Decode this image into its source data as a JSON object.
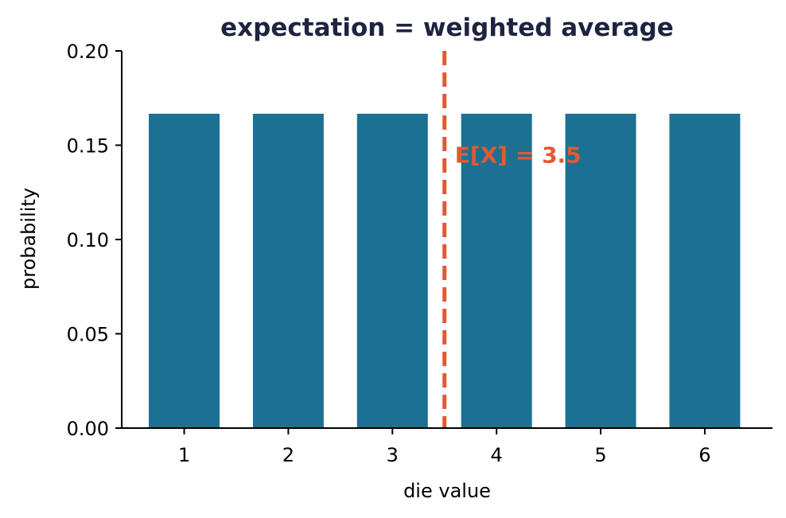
{
  "chart_data": {
    "type": "bar",
    "title": "expectation = weighted average",
    "xlabel": "die value",
    "ylabel": "probability",
    "categories": [
      1,
      2,
      3,
      4,
      5,
      6
    ],
    "values": [
      0.1667,
      0.1667,
      0.1667,
      0.1667,
      0.1667,
      0.1667
    ],
    "xlim": [
      0.4,
      6.65
    ],
    "ylim": [
      0,
      0.2
    ],
    "y_ticks": [
      "0.00",
      "0.05",
      "0.10",
      "0.15",
      "0.20"
    ],
    "y_tick_values": [
      0,
      0.05,
      0.1,
      0.15,
      0.2
    ],
    "x_ticks": [
      "1",
      "2",
      "3",
      "4",
      "5",
      "6"
    ],
    "bar_width": 0.68,
    "grid": false,
    "reference_line": {
      "x": 3.5,
      "style": "dashed",
      "color": "#e05a33"
    },
    "annotation": {
      "text": "E[X] = 3.5",
      "x": 3.6,
      "y": 0.145,
      "color": "#e05a33"
    },
    "colors": {
      "bar": "#1c7193",
      "title": "#1e2340",
      "axis": "#000000"
    }
  }
}
